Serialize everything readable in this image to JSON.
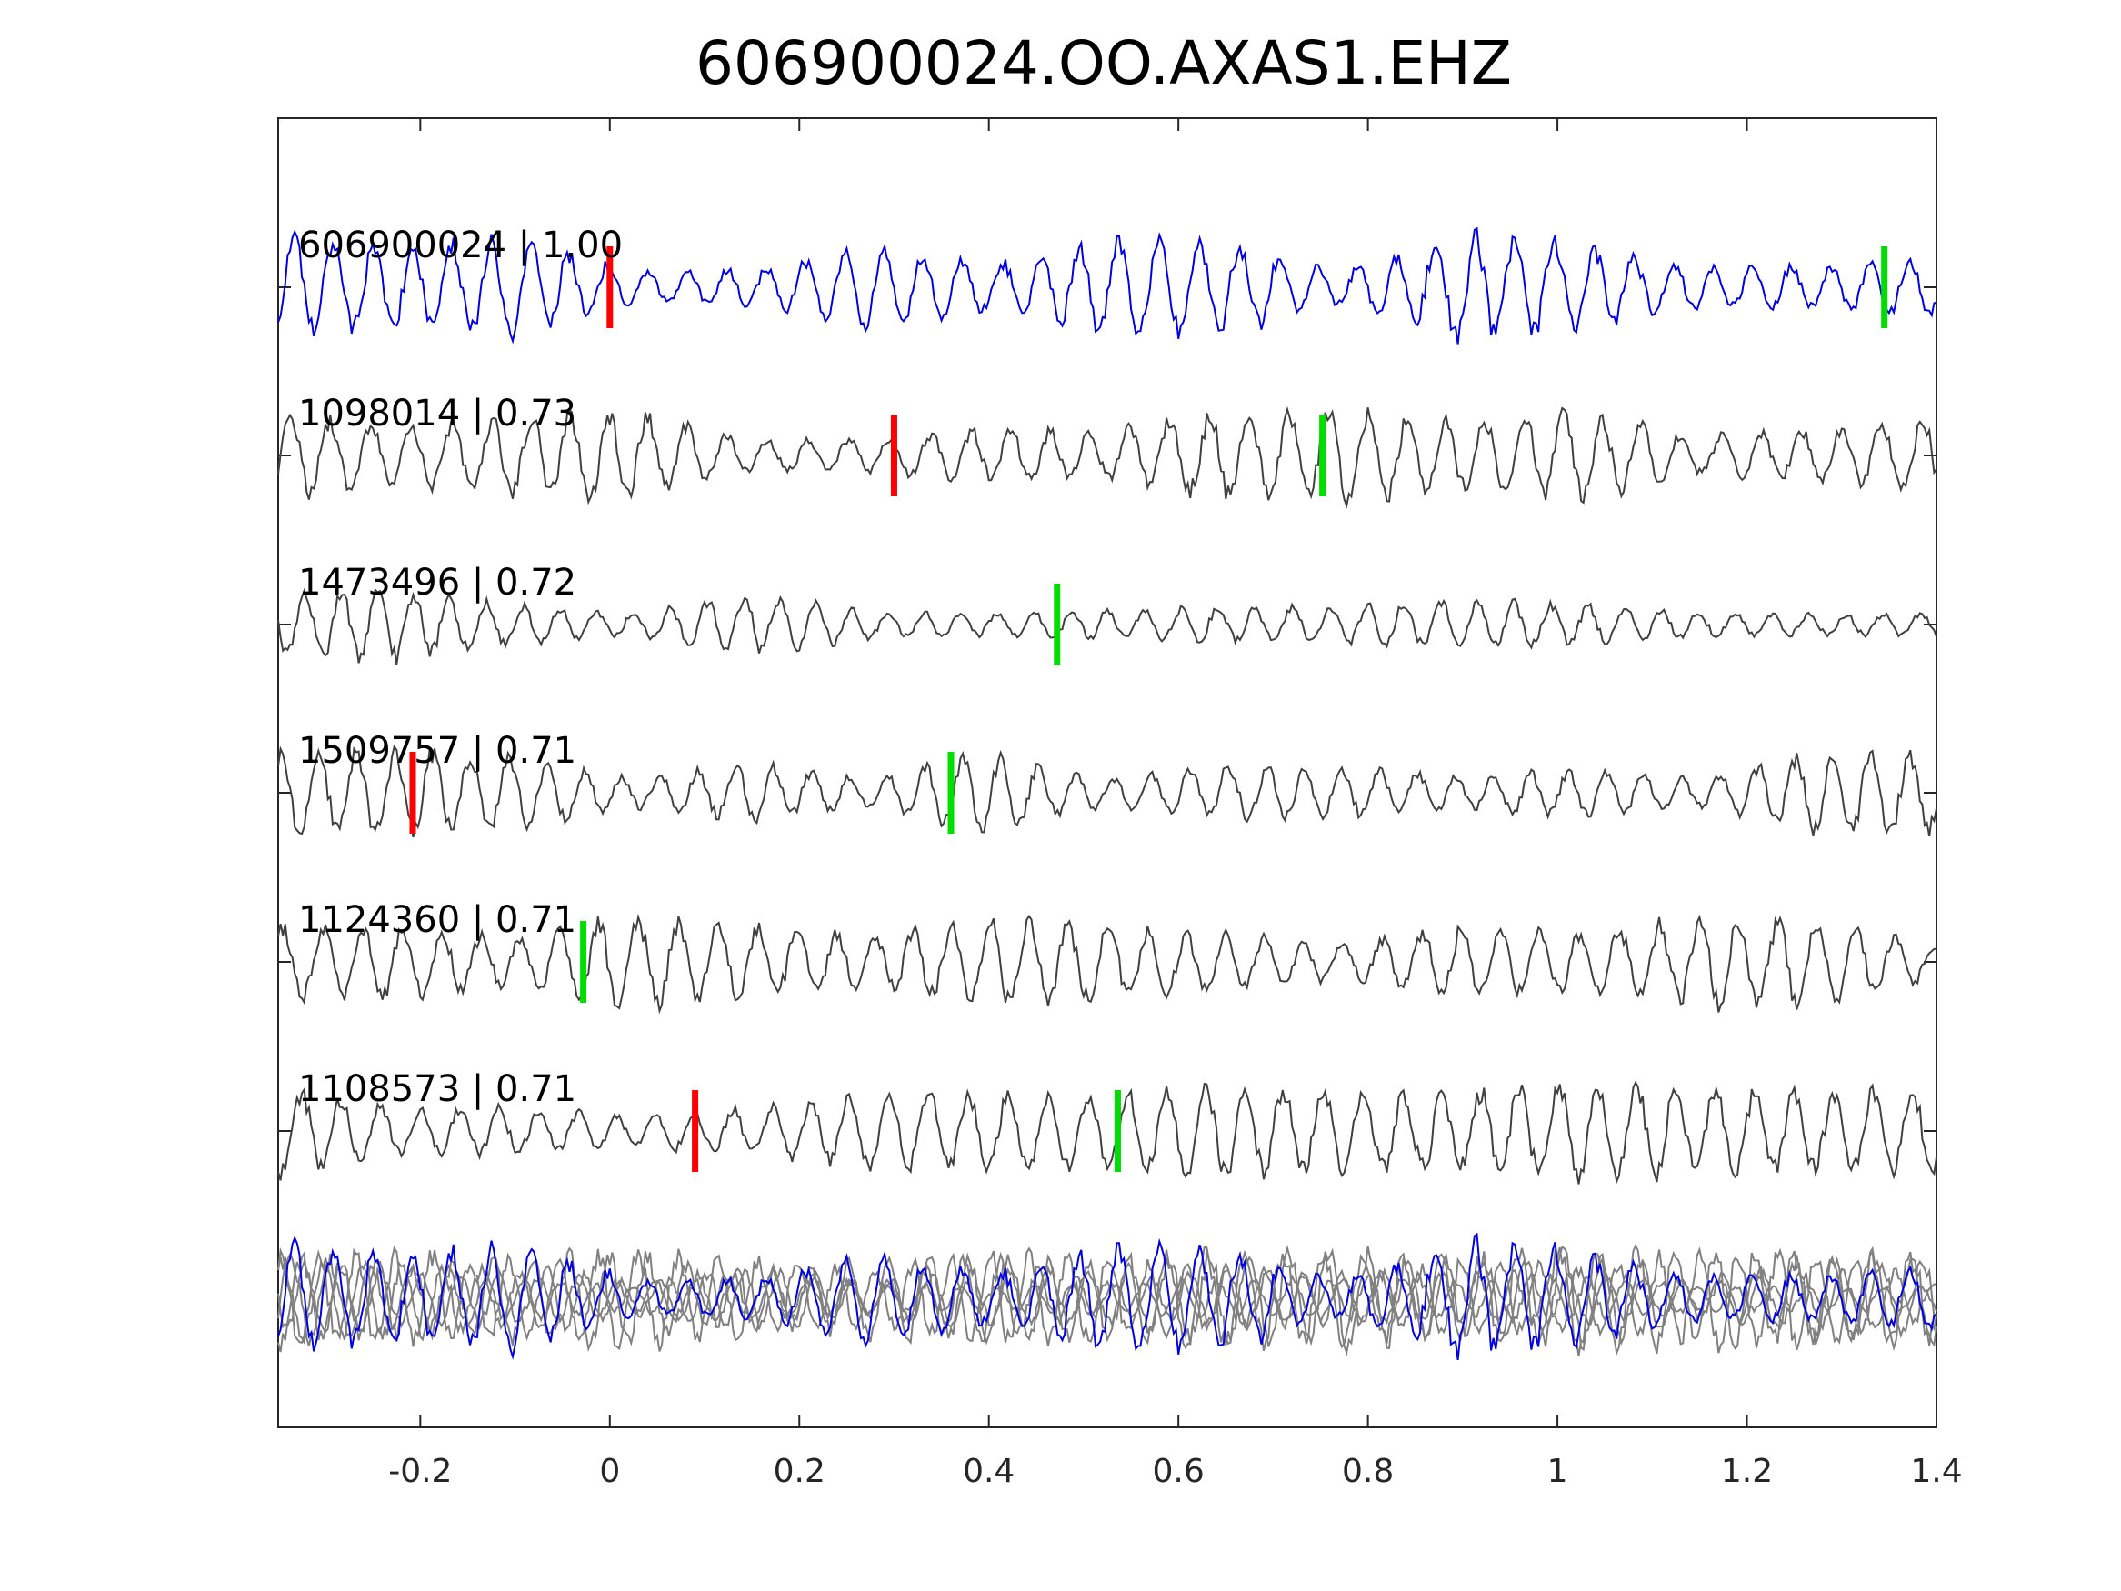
{
  "chart_data": {
    "type": "line",
    "title": "606900024.OO.AXAS1.EHZ",
    "xlabel": "",
    "ylabel": "",
    "xlim": [
      -0.35,
      1.4
    ],
    "xticks": [
      -0.2,
      0,
      0.2,
      0.4,
      0.6,
      0.8,
      1,
      1.2,
      1.4
    ],
    "xtick_labels": [
      "-0.2",
      "0",
      "0.2",
      "0.4",
      "0.6",
      "0.8",
      "1",
      "1.2",
      "1.4"
    ],
    "grid": false,
    "box": true,
    "colors": {
      "template": "#0000e0",
      "neighbor": "#404040",
      "stack": "#808080",
      "p_pick": "#ff0000",
      "s_pick": "#00dd00",
      "axis": "#262626"
    },
    "series": [
      {
        "name": "606900024 | 1.00",
        "trace_id": "606900024",
        "correlation": "1.00",
        "color": "#0000e0",
        "p_pick": 0.0,
        "s_pick": 1.345,
        "seed": 11,
        "freq": 24,
        "amp": 0.55
      },
      {
        "name": "1098014 | 0.73",
        "trace_id": "1098014",
        "correlation": "0.73",
        "color": "#404040",
        "p_pick": 0.3,
        "s_pick": 0.752,
        "seed": 23,
        "freq": 24,
        "amp": 0.55
      },
      {
        "name": "1473496 | 0.72",
        "trace_id": "1473496",
        "correlation": "0.72",
        "color": "#404040",
        "p_pick": null,
        "s_pick": 0.472,
        "seed": 37,
        "freq": 26,
        "amp": 0.35
      },
      {
        "name": "1509757 | 0.71",
        "trace_id": "1509757",
        "correlation": "0.71",
        "color": "#404040",
        "p_pick": -0.208,
        "s_pick": 0.36,
        "seed": 41,
        "freq": 25,
        "amp": 0.45
      },
      {
        "name": "1124360 | 0.71",
        "trace_id": "1124360",
        "correlation": "0.71",
        "color": "#404040",
        "p_pick": null,
        "s_pick": -0.028,
        "seed": 53,
        "freq": 24,
        "amp": 0.5
      },
      {
        "name": "1108573 | 0.71",
        "trace_id": "1108573",
        "correlation": "0.71",
        "color": "#404040",
        "p_pick": 0.09,
        "s_pick": 0.536,
        "seed": 67,
        "freq": 24,
        "amp": 0.5
      }
    ],
    "stack": {
      "description_visible": false,
      "template_index": 0
    }
  }
}
